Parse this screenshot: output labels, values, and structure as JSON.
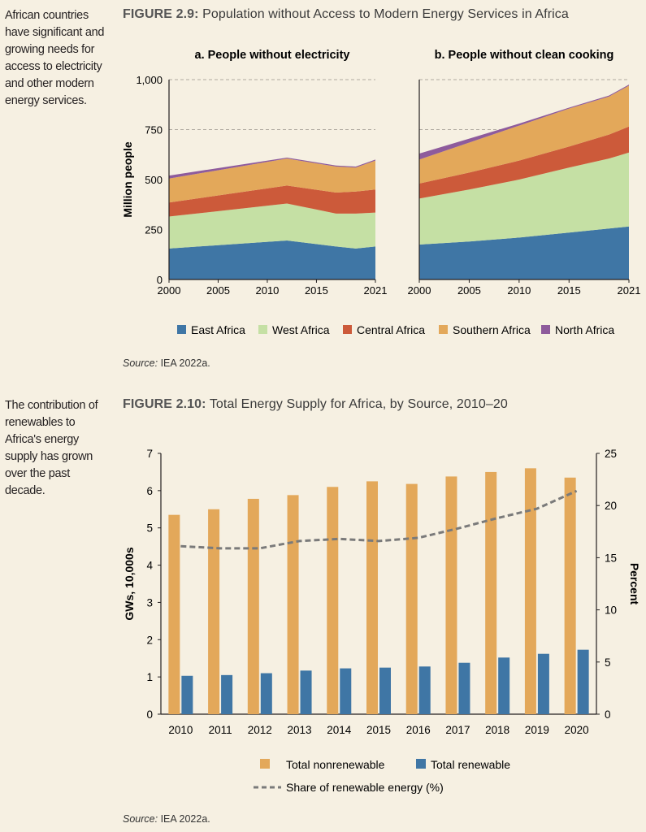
{
  "fig1": {
    "sidenote": "African countries have significant and growing needs for access to electricity and other modern energy services.",
    "number": "FIGURE 2.9:",
    "title": "Population without Access to Modern Energy Services in Africa",
    "source_label": "Source:",
    "source_text": "IEA 2022a."
  },
  "fig2": {
    "sidenote": "The contribution of renewables to Africa's energy supply has grown over the past decade.",
    "number": "FIGURE 2.10:",
    "title": "Total Energy Supply for Africa, by Source, 2010–20",
    "source_label": "Source:",
    "source_text": "IEA 2022a."
  },
  "colors": {
    "east_africa": "#3f76a5",
    "west_africa": "#c5e0a4",
    "central_africa": "#cc5a3a",
    "southern_africa": "#e3a85a",
    "north_africa": "#8e5b9c",
    "nonrenewable": "#e3a85a",
    "renewable": "#3f76a5",
    "share_line": "#7a7a7a"
  },
  "chart_data": [
    {
      "type": "area",
      "stacked": true,
      "title": "a. People without electricity",
      "ylabel": "Million people",
      "ylim": [
        0,
        1000
      ],
      "yticks": [
        "0",
        "250",
        "500",
        "750",
        "1,000"
      ],
      "xticks": [
        "2000",
        "2005",
        "2010",
        "2015",
        "2021"
      ],
      "x": [
        2000,
        2012,
        2017,
        2019,
        2021
      ],
      "series": [
        {
          "name": "East Africa",
          "values": [
            155,
            195,
            165,
            155,
            165
          ]
        },
        {
          "name": "West Africa",
          "values": [
            160,
            185,
            165,
            175,
            170
          ]
        },
        {
          "name": "Central Africa",
          "values": [
            70,
            90,
            105,
            110,
            115
          ]
        },
        {
          "name": "Southern Africa",
          "values": [
            120,
            135,
            130,
            120,
            145
          ]
        },
        {
          "name": "North Africa",
          "values": [
            15,
            5,
            5,
            5,
            5
          ]
        }
      ]
    },
    {
      "type": "area",
      "stacked": true,
      "title": "b. People without clean cooking",
      "ylim": [
        0,
        1000
      ],
      "xticks": [
        "2000",
        "2005",
        "2010",
        "2015",
        "2021"
      ],
      "x": [
        2000,
        2005,
        2010,
        2015,
        2019,
        2021
      ],
      "series": [
        {
          "name": "East Africa",
          "values": [
            175,
            190,
            210,
            235,
            255,
            265
          ]
        },
        {
          "name": "West Africa",
          "values": [
            230,
            260,
            290,
            325,
            350,
            370
          ]
        },
        {
          "name": "Central Africa",
          "values": [
            75,
            85,
            95,
            105,
            120,
            130
          ]
        },
        {
          "name": "Southern Africa",
          "values": [
            120,
            150,
            175,
            190,
            190,
            205
          ]
        },
        {
          "name": "North Africa",
          "values": [
            30,
            20,
            10,
            5,
            5,
            5
          ]
        }
      ]
    },
    {
      "type": "bar",
      "categories": [
        "2010",
        "2011",
        "2012",
        "2013",
        "2014",
        "2015",
        "2016",
        "2017",
        "2018",
        "2019",
        "2020"
      ],
      "ylabel": "GWs, 10,000s",
      "y2label": "Percent",
      "ylim": [
        0,
        7
      ],
      "y2lim": [
        0,
        25
      ],
      "yticks": [
        "0",
        "1",
        "2",
        "3",
        "4",
        "5",
        "6",
        "7"
      ],
      "y2ticks": [
        "0",
        "5",
        "10",
        "15",
        "20",
        "25"
      ],
      "series": [
        {
          "name": "Total nonrenewable",
          "values": [
            5.35,
            5.5,
            5.78,
            5.88,
            6.1,
            6.25,
            6.18,
            6.38,
            6.5,
            6.6,
            6.35
          ]
        },
        {
          "name": "Total renewable",
          "values": [
            1.03,
            1.05,
            1.1,
            1.17,
            1.23,
            1.25,
            1.28,
            1.38,
            1.52,
            1.62,
            1.73
          ]
        }
      ],
      "line_series": {
        "name": "Share of renewable energy (%)",
        "axis": "right",
        "values": [
          16.1,
          15.9,
          15.9,
          16.6,
          16.8,
          16.6,
          16.9,
          17.8,
          18.8,
          19.7,
          21.4
        ]
      }
    }
  ]
}
